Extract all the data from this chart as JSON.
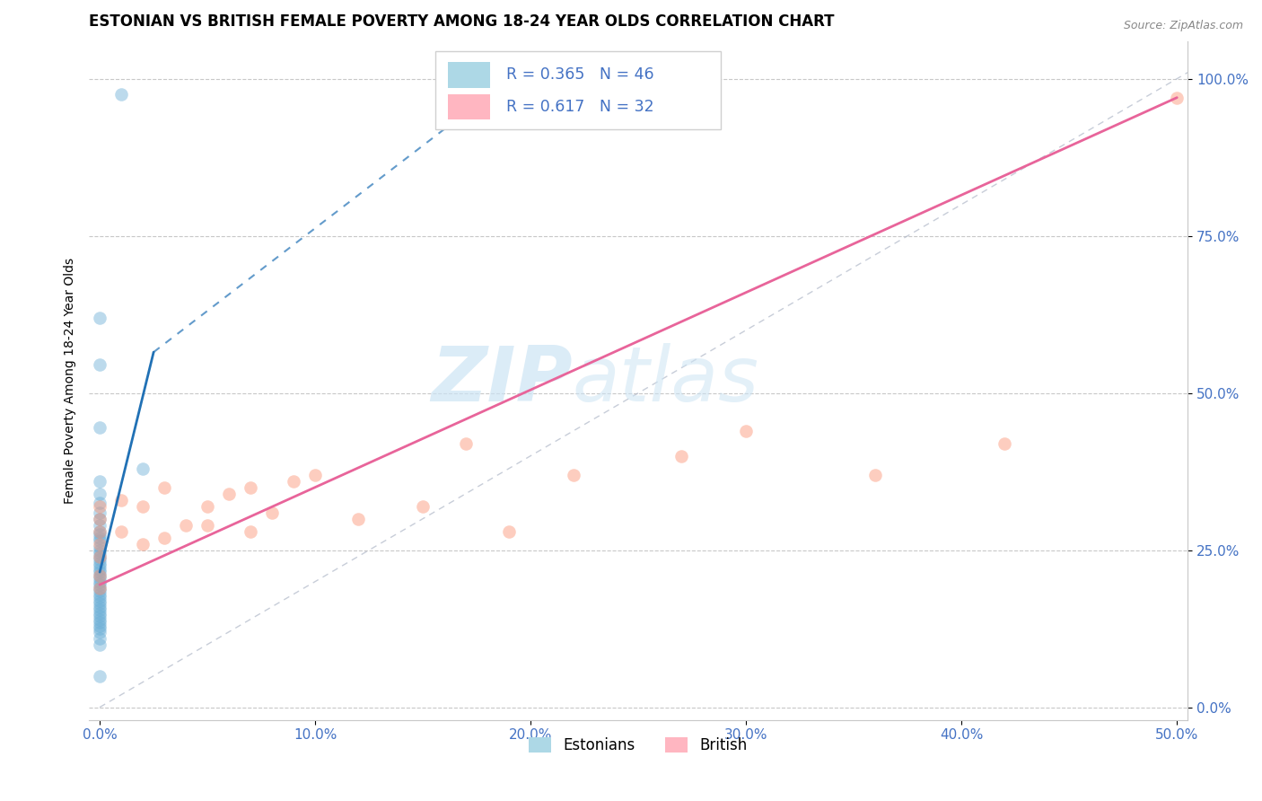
{
  "title": "ESTONIAN VS BRITISH FEMALE POVERTY AMONG 18-24 YEAR OLDS CORRELATION CHART",
  "source": "Source: ZipAtlas.com",
  "ylabel": "Female Poverty Among 18-24 Year Olds",
  "xlim": [
    -0.005,
    0.505
  ],
  "ylim": [
    -0.02,
    1.06
  ],
  "xticks": [
    0.0,
    0.1,
    0.2,
    0.3,
    0.4,
    0.5
  ],
  "xticklabels": [
    "0.0%",
    "10.0%",
    "20.0%",
    "30.0%",
    "40.0%",
    "50.0%"
  ],
  "yticks": [
    0.0,
    0.25,
    0.5,
    0.75,
    1.0
  ],
  "yticklabels": [
    "0.0%",
    "25.0%",
    "50.0%",
    "75.0%",
    "100.0%"
  ],
  "legend_r_blue": "R = 0.365",
  "legend_n_blue": "N = 46",
  "legend_r_pink": "R = 0.617",
  "legend_n_pink": "N = 32",
  "legend_label_blue": "Estonians",
  "legend_label_pink": "British",
  "blue_color": "#6baed6",
  "pink_color": "#fc9272",
  "blue_line_color": "#2171b5",
  "pink_line_color": "#e8649a",
  "watermark_zip": "ZIP",
  "watermark_atlas": "atlas",
  "blue_scatter_x": [
    0.01,
    0.0,
    0.0,
    0.0,
    0.02,
    0.0,
    0.0,
    0.0,
    0.0,
    0.0,
    0.0,
    0.0,
    0.0,
    0.0,
    0.0,
    0.0,
    0.0,
    0.0,
    0.0,
    0.0,
    0.0,
    0.0,
    0.0,
    0.0,
    0.0,
    0.0,
    0.0,
    0.0,
    0.0,
    0.0,
    0.0,
    0.0,
    0.0,
    0.0,
    0.0,
    0.0,
    0.0,
    0.0,
    0.0,
    0.0,
    0.0,
    0.0,
    0.0,
    0.0,
    0.0,
    0.0
  ],
  "blue_scatter_y": [
    0.975,
    0.62,
    0.545,
    0.445,
    0.38,
    0.36,
    0.34,
    0.325,
    0.31,
    0.3,
    0.29,
    0.28,
    0.275,
    0.27,
    0.265,
    0.255,
    0.25,
    0.245,
    0.24,
    0.235,
    0.23,
    0.225,
    0.22,
    0.215,
    0.21,
    0.205,
    0.2,
    0.195,
    0.19,
    0.185,
    0.18,
    0.175,
    0.17,
    0.165,
    0.16,
    0.155,
    0.15,
    0.145,
    0.14,
    0.135,
    0.13,
    0.125,
    0.12,
    0.11,
    0.1,
    0.05
  ],
  "pink_scatter_x": [
    0.0,
    0.0,
    0.0,
    0.0,
    0.0,
    0.0,
    0.0,
    0.01,
    0.01,
    0.02,
    0.02,
    0.03,
    0.03,
    0.04,
    0.05,
    0.05,
    0.06,
    0.07,
    0.07,
    0.08,
    0.09,
    0.1,
    0.12,
    0.15,
    0.17,
    0.19,
    0.22,
    0.27,
    0.3,
    0.36,
    0.42,
    0.5
  ],
  "pink_scatter_y": [
    0.19,
    0.21,
    0.24,
    0.26,
    0.28,
    0.3,
    0.32,
    0.28,
    0.33,
    0.26,
    0.32,
    0.35,
    0.27,
    0.29,
    0.32,
    0.29,
    0.34,
    0.35,
    0.28,
    0.31,
    0.36,
    0.37,
    0.3,
    0.32,
    0.42,
    0.28,
    0.37,
    0.4,
    0.44,
    0.37,
    0.42,
    0.97
  ],
  "blue_solid_line_x": [
    0.0,
    0.025
  ],
  "blue_solid_line_y": [
    0.215,
    0.565
  ],
  "blue_dashed_line_x": [
    0.025,
    0.16
  ],
  "blue_dashed_line_y": [
    0.565,
    0.92
  ],
  "pink_line_x": [
    0.0,
    0.5
  ],
  "pink_line_y": [
    0.195,
    0.97
  ],
  "ref_line_x": [
    0.0,
    0.505
  ],
  "ref_line_y": [
    0.0,
    1.01
  ],
  "title_fontsize": 12,
  "tick_color": "#4472c4",
  "grid_color": "#c8c8c8"
}
